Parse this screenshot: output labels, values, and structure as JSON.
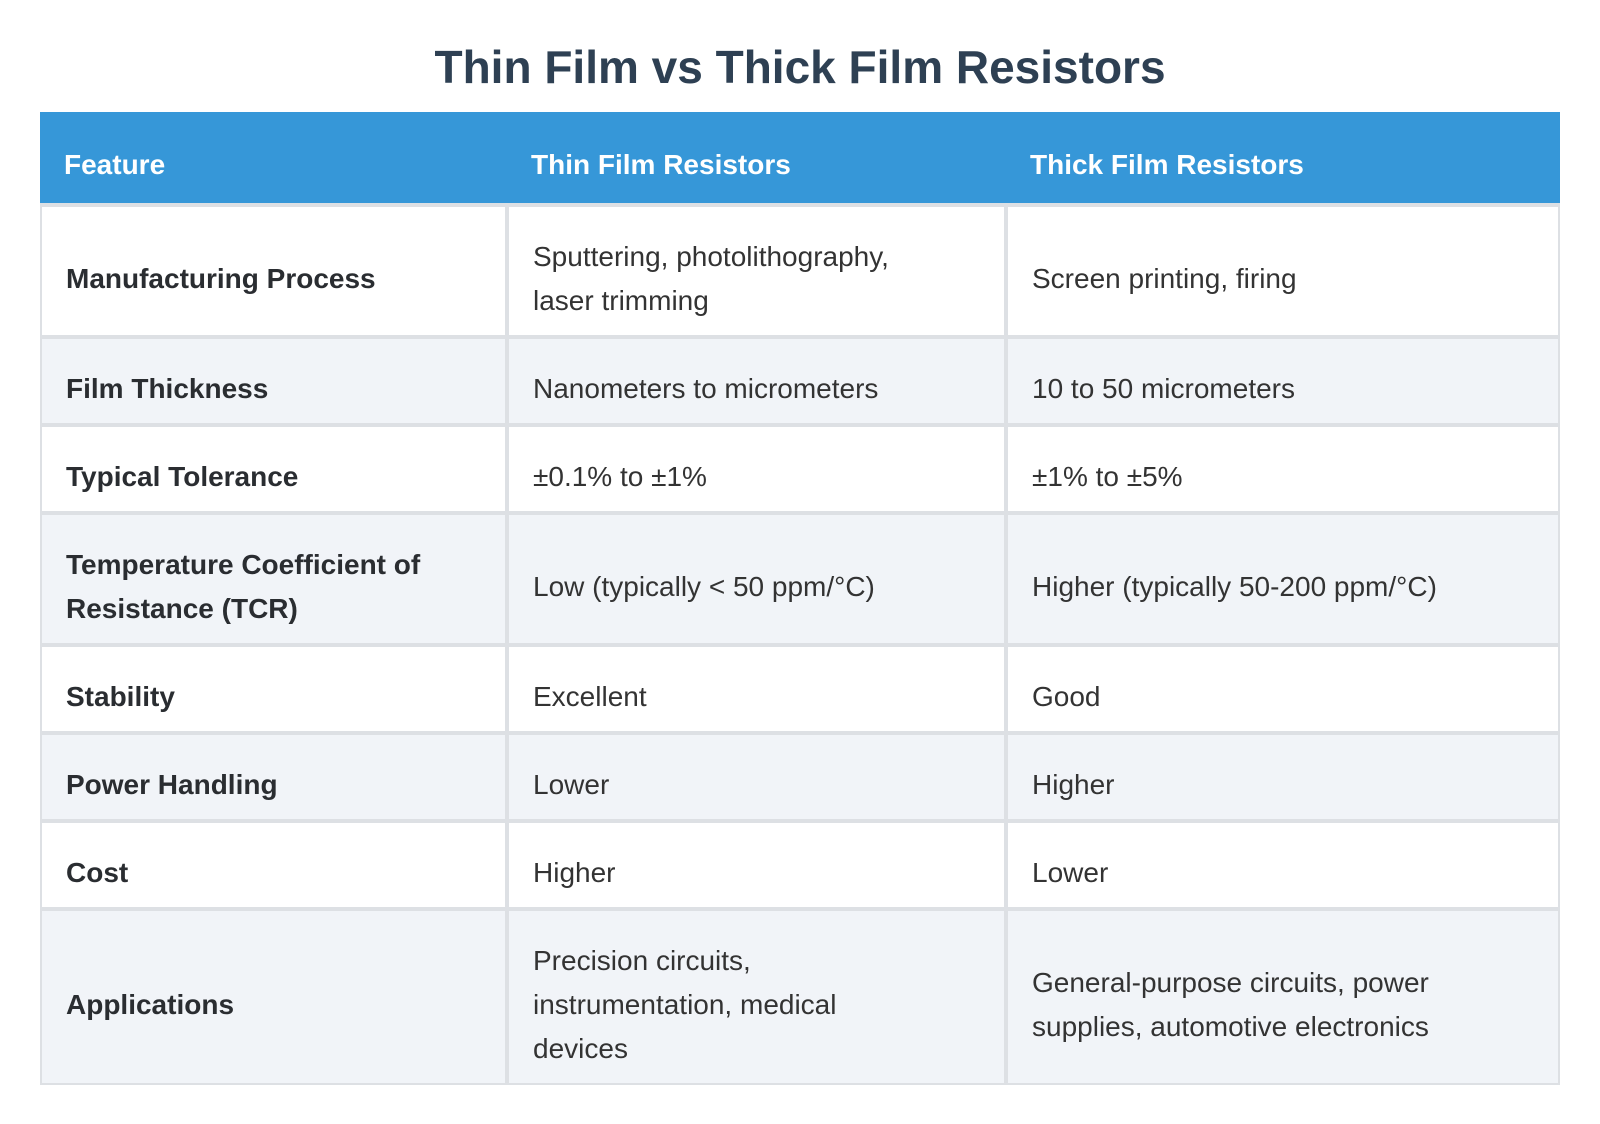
{
  "title": "Thin Film vs Thick Film Resistors",
  "table": {
    "columns": [
      "Feature",
      "Thin Film Resistors",
      "Thick Film Resistors"
    ],
    "rows": [
      {
        "feature": "Manufacturing Process",
        "thin": "Sputtering, photolithography,\nlaser trimming",
        "thick": "Screen printing, firing"
      },
      {
        "feature": "Film Thickness",
        "thin": "Nanometers to micrometers",
        "thick": "10 to 50 micrometers"
      },
      {
        "feature": "Typical Tolerance",
        "thin": "±0.1% to ±1%",
        "thick": "±1% to ±5%"
      },
      {
        "feature": "Temperature Coefficient of\nResistance (TCR)",
        "thin": "Low (typically < 50 ppm/°C)",
        "thick": "Higher (typically 50-200 ppm/°C)"
      },
      {
        "feature": "Stability",
        "thin": "Excellent",
        "thick": "Good"
      },
      {
        "feature": "Power Handling",
        "thin": "Lower",
        "thick": "Higher"
      },
      {
        "feature": "Cost",
        "thin": "Higher",
        "thick": "Lower"
      },
      {
        "feature": "Applications",
        "thin": "Precision circuits,\ninstrumentation, medical\ndevices",
        "thick": "General-purpose circuits, power\nsupplies, automotive electronics"
      }
    ]
  },
  "colors": {
    "header_bg": "#3697d8",
    "header_text": "#ffffff",
    "row_alt_bg": "#f1f4f8",
    "border_color": "#dde0e4",
    "title_color": "#2e4053",
    "feature_text": "#2a2d31",
    "value_text": "#333333"
  }
}
